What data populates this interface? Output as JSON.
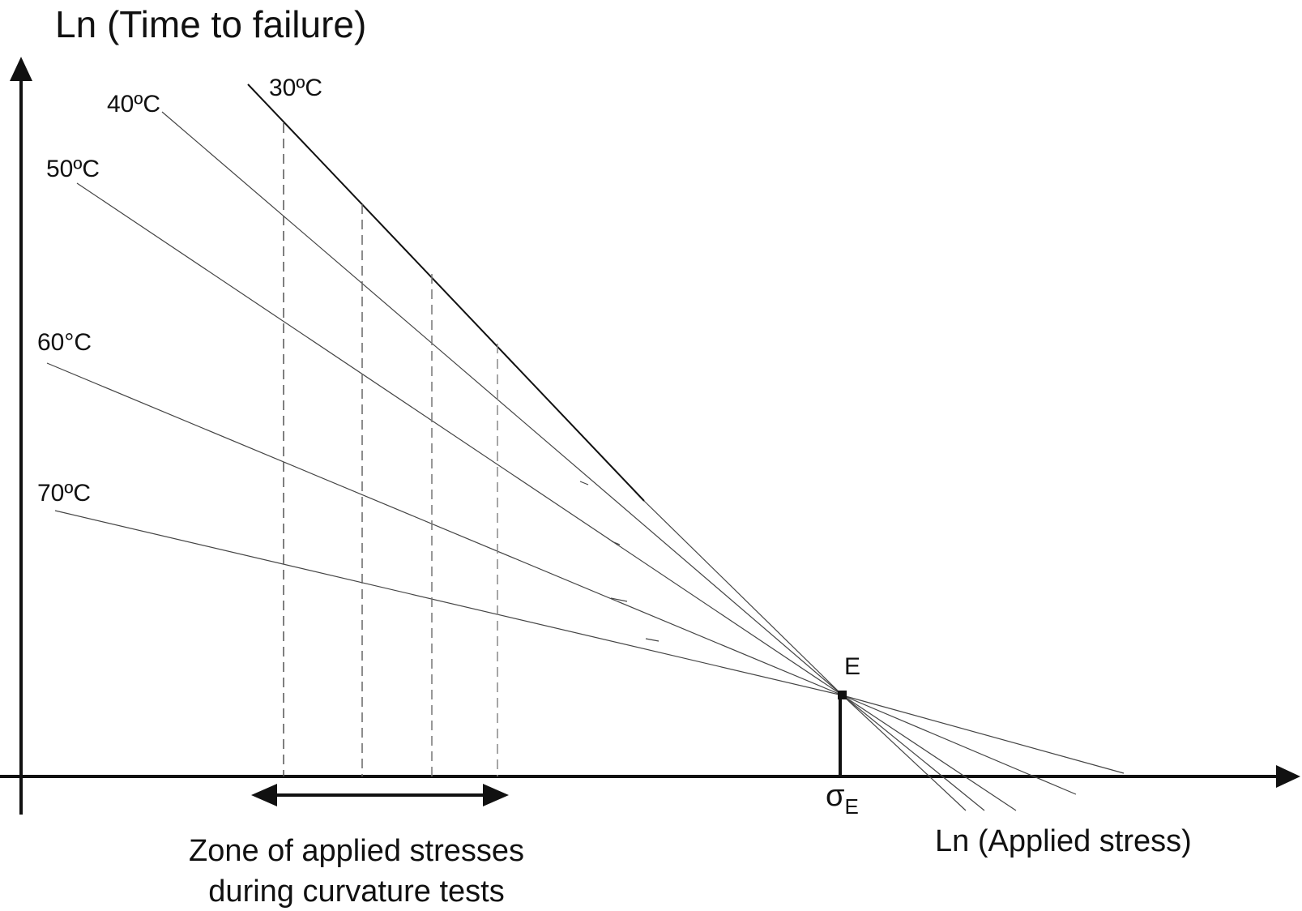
{
  "y_axis_label": "Ln (Time to failure)",
  "x_axis_label": "Ln (Applied stress)",
  "point_label": "E",
  "sigma_symbol": "σ",
  "sigma_subscript": "E",
  "zone_label_line1": "Zone of applied stresses",
  "zone_label_line2": "during curvature tests",
  "lines": [
    {
      "label": "30ºC"
    },
    {
      "label": "40ºC"
    },
    {
      "label": "50ºC"
    },
    {
      "label": "60°C"
    },
    {
      "label": "70ºC"
    }
  ],
  "colors": {
    "ink": "#111111",
    "thin": "#444444",
    "dash": "#666666"
  }
}
